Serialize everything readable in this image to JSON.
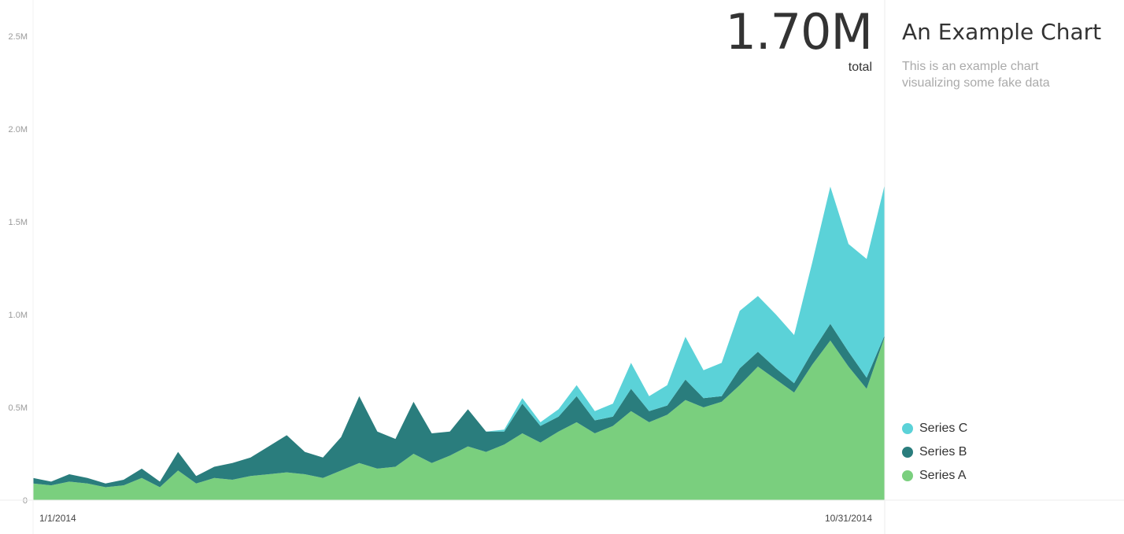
{
  "header": {
    "total_value": "1.70M",
    "total_label": "total"
  },
  "panel": {
    "title": "An Example Chart",
    "description": "This is an example chart visualizing some fake data"
  },
  "legend": [
    {
      "label": "Series C",
      "color": "#5bd2d8"
    },
    {
      "label": "Series B",
      "color": "#2a7d7d"
    },
    {
      "label": "Series A",
      "color": "#7acf7e"
    }
  ],
  "chart_data": {
    "type": "area",
    "stacked": true,
    "x_start_label": "1/1/2014",
    "x_end_label": "10/31/2014",
    "y_ticks": [
      "0",
      "0.5M",
      "1.0M",
      "1.5M",
      "2.0M",
      "2.5M"
    ],
    "y_tick_values": [
      0,
      500000,
      1000000,
      1500000,
      2000000,
      2500000
    ],
    "ylim": [
      0,
      2500000
    ],
    "grid": false,
    "series": [
      {
        "name": "Series A",
        "values": [
          90000,
          80000,
          100000,
          90000,
          70000,
          80000,
          120000,
          70000,
          160000,
          90000,
          120000,
          110000,
          130000,
          140000,
          150000,
          140000,
          120000,
          160000,
          200000,
          170000,
          180000,
          250000,
          200000,
          240000,
          290000,
          260000,
          300000,
          360000,
          310000,
          370000,
          420000,
          360000,
          400000,
          480000,
          420000,
          460000,
          540000,
          500000,
          530000,
          620000,
          720000,
          650000,
          580000,
          730000,
          860000,
          720000,
          600000,
          880000
        ]
      },
      {
        "name": "Series B",
        "values": [
          30000,
          20000,
          40000,
          30000,
          20000,
          30000,
          50000,
          30000,
          100000,
          40000,
          60000,
          90000,
          100000,
          150000,
          200000,
          120000,
          110000,
          180000,
          360000,
          200000,
          150000,
          280000,
          160000,
          130000,
          200000,
          110000,
          70000,
          160000,
          90000,
          80000,
          140000,
          70000,
          50000,
          120000,
          60000,
          50000,
          110000,
          50000,
          30000,
          90000,
          80000,
          60000,
          50000,
          70000,
          90000,
          80000,
          60000,
          10000
        ]
      },
      {
        "name": "Series C",
        "values": [
          0,
          0,
          0,
          0,
          0,
          0,
          0,
          0,
          0,
          0,
          0,
          0,
          0,
          0,
          0,
          0,
          0,
          0,
          0,
          0,
          0,
          0,
          0,
          0,
          0,
          0,
          10000,
          30000,
          20000,
          40000,
          60000,
          50000,
          70000,
          140000,
          80000,
          110000,
          230000,
          150000,
          180000,
          310000,
          300000,
          290000,
          260000,
          480000,
          740000,
          580000,
          640000,
          810000
        ]
      }
    ]
  }
}
